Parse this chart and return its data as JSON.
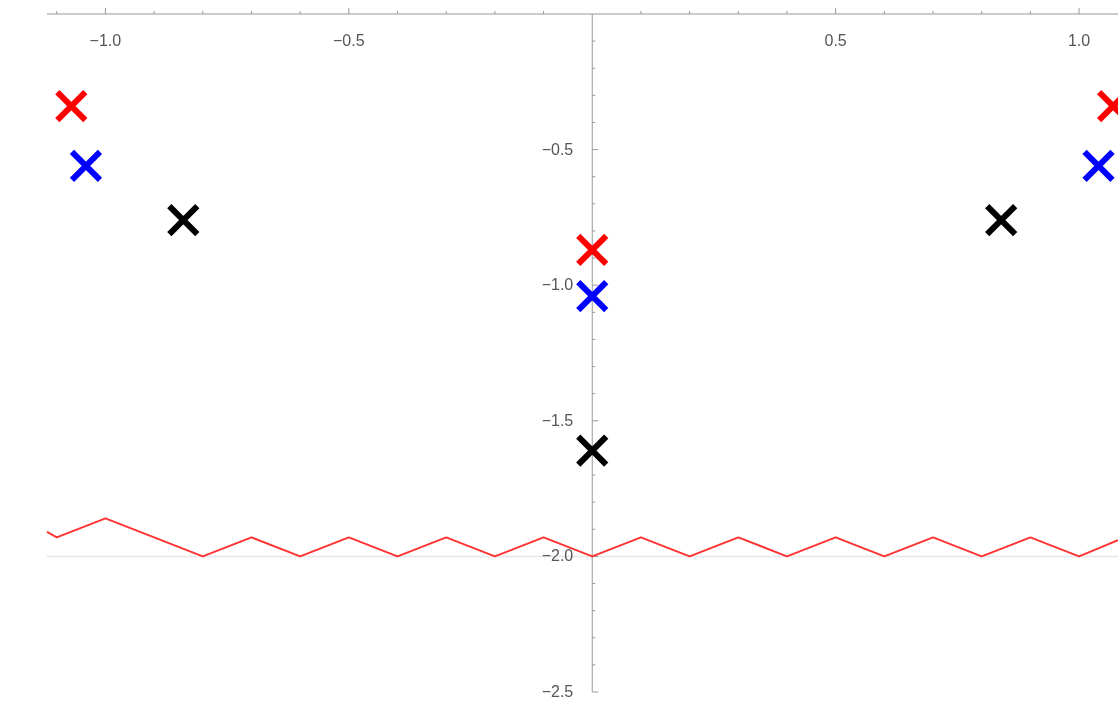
{
  "chart_data": {
    "type": "scatter",
    "marker": "cross",
    "grid": false,
    "xlim": [
      -1.12,
      1.08
    ],
    "ylim": [
      -2.5,
      0
    ],
    "xticks": [
      {
        "value": -1.1,
        "label": null
      },
      {
        "value": -1.0,
        "label": "−1.0"
      },
      {
        "value": -0.9,
        "label": null
      },
      {
        "value": -0.8,
        "label": null
      },
      {
        "value": -0.7,
        "label": null
      },
      {
        "value": -0.6,
        "label": null
      },
      {
        "value": -0.5,
        "label": "−0.5"
      },
      {
        "value": -0.4,
        "label": null
      },
      {
        "value": -0.3,
        "label": null
      },
      {
        "value": -0.2,
        "label": null
      },
      {
        "value": -0.1,
        "label": null
      },
      {
        "value": 0.1,
        "label": null
      },
      {
        "value": 0.2,
        "label": null
      },
      {
        "value": 0.3,
        "label": null
      },
      {
        "value": 0.4,
        "label": null
      },
      {
        "value": 0.5,
        "label": "0.5"
      },
      {
        "value": 0.6,
        "label": null
      },
      {
        "value": 0.7,
        "label": null
      },
      {
        "value": 0.8,
        "label": null
      },
      {
        "value": 0.9,
        "label": null
      },
      {
        "value": 1.0,
        "label": "1.0"
      }
    ],
    "yticks": [
      {
        "value": -0.1,
        "label": null
      },
      {
        "value": -0.2,
        "label": null
      },
      {
        "value": -0.3,
        "label": null
      },
      {
        "value": -0.4,
        "label": null
      },
      {
        "value": -0.5,
        "label": "−0.5"
      },
      {
        "value": -0.6,
        "label": null
      },
      {
        "value": -0.7,
        "label": null
      },
      {
        "value": -0.8,
        "label": null
      },
      {
        "value": -0.9,
        "label": null
      },
      {
        "value": -1.0,
        "label": "−1.0"
      },
      {
        "value": -1.1,
        "label": null
      },
      {
        "value": -1.2,
        "label": null
      },
      {
        "value": -1.3,
        "label": null
      },
      {
        "value": -1.4,
        "label": null
      },
      {
        "value": -1.5,
        "label": "−1.5"
      },
      {
        "value": -1.6,
        "label": null
      },
      {
        "value": -1.7,
        "label": null
      },
      {
        "value": -1.8,
        "label": null
      },
      {
        "value": -1.9,
        "label": null
      },
      {
        "value": -2.0,
        "label": "−2.0"
      },
      {
        "value": -2.1,
        "label": null
      },
      {
        "value": -2.2,
        "label": null
      },
      {
        "value": -2.3,
        "label": null
      },
      {
        "value": -2.4,
        "label": null
      },
      {
        "value": -2.5,
        "label": "−2.5"
      }
    ],
    "ref_lines": [
      {
        "axis": "y",
        "value": -2.0,
        "color": "#e6e6e6"
      }
    ],
    "series": [
      {
        "color": "#ff0000",
        "x": [
          -1.07,
          0,
          1.07
        ],
        "values": [
          -0.34,
          -0.87,
          -0.34
        ]
      },
      {
        "color": "#0000ff",
        "x": [
          -1.04,
          0,
          1.04
        ],
        "values": [
          -0.56,
          -1.04,
          -0.56
        ]
      },
      {
        "color": "#000000",
        "x": [
          -0.84,
          0,
          0.84
        ],
        "values": [
          -0.76,
          -1.61,
          -0.76
        ]
      },
      {
        "type": "line",
        "marker": "none",
        "color": "#ff3333",
        "x": [
          -1.12,
          -1.1,
          -1.0,
          -0.8,
          -0.7,
          -0.6,
          -0.5,
          -0.4,
          -0.3,
          -0.2,
          -0.1,
          0,
          0.1,
          0.2,
          0.3,
          0.4,
          0.5,
          0.6,
          0.7,
          0.8,
          0.9,
          1.0,
          1.08
        ],
        "values": [
          -1.91,
          -1.93,
          -1.86,
          -2.0,
          -1.93,
          -2.0,
          -1.93,
          -2.0,
          -1.93,
          -2.0,
          -1.93,
          -2.0,
          -1.93,
          -2.0,
          -1.93,
          -2.0,
          -1.93,
          -2.0,
          -1.93,
          -2.0,
          -1.93,
          -2.0,
          -1.94
        ]
      }
    ]
  }
}
